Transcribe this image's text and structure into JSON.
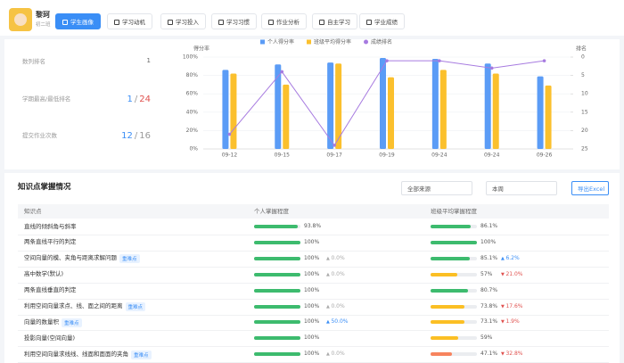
{
  "header": {
    "name": "黎珂",
    "class": "初二班",
    "tabs": [
      "学生画像",
      "学习动机",
      "学习投入",
      "学习习惯",
      "作业分析",
      "自主学习",
      "学业成绩"
    ]
  },
  "summary": [
    {
      "label": "数列排名",
      "parts": [
        "1"
      ]
    },
    {
      "label": "学期最高/最低排名",
      "parts": [
        "1",
        "/",
        "24"
      ]
    },
    {
      "label": "提交作业次数",
      "parts": [
        "12",
        "/",
        "16"
      ]
    }
  ],
  "chart_data": {
    "type": "bar-line",
    "ylabel": "得分率",
    "y2label": "排名",
    "categories": [
      "09-12",
      "09-15",
      "09-17",
      "09-19",
      "09-24",
      "09-24",
      "09-26"
    ],
    "series": [
      {
        "name": "个人得分率",
        "color": "#5b9cf6",
        "type": "bar",
        "values": [
          86,
          92,
          94,
          99,
          98,
          93,
          79
        ]
      },
      {
        "name": "班级平均得分率",
        "color": "#fbc02d",
        "type": "bar",
        "values": [
          82,
          70,
          93,
          78,
          86,
          82,
          69
        ]
      },
      {
        "name": "成绩排名",
        "color": "#a77be0",
        "type": "line",
        "axis": "y2",
        "values": [
          21,
          4,
          24,
          1,
          1,
          3,
          1
        ]
      }
    ],
    "ylim": [
      0,
      100
    ],
    "yticks": [
      {
        "value": 0,
        "label": "0%"
      },
      {
        "value": 20,
        "label": "20%"
      },
      {
        "value": 40,
        "label": "40%"
      },
      {
        "value": 60,
        "label": "60%"
      },
      {
        "value": 80,
        "label": "80%"
      },
      {
        "value": 100,
        "label": "100%"
      }
    ],
    "y2lim": [
      0,
      25
    ],
    "y2_inverted": true,
    "y2ticks": [
      0,
      5,
      10,
      15,
      20,
      25
    ],
    "grid": true,
    "legend": "top"
  },
  "knowledge": {
    "title": "知识点掌握情况",
    "filters": [
      "全部来源",
      "本周"
    ],
    "export": "导出Excel",
    "columns": [
      "知识点",
      "个人掌握程度",
      "班级平均掌握程度"
    ],
    "rows": [
      {
        "name": "直线的倾斜角与斜率",
        "personal": {
          "value": 93.8,
          "label": "93.8%",
          "color": "#3dbb6e"
        },
        "class": {
          "value": 86.1,
          "label": "86.1%",
          "color": "#3dbb6e"
        }
      },
      {
        "name": "两条直线平行的判定",
        "personal": {
          "value": 100,
          "label": "100%",
          "color": "#3dbb6e"
        },
        "class": {
          "value": 100,
          "label": "100%",
          "color": "#3dbb6e"
        }
      },
      {
        "name": "空间向量的模、夹角与距离求解问题",
        "tag": "重难点",
        "personal": {
          "value": 100,
          "label": "100%",
          "color": "#3dbb6e",
          "delta": {
            "value": 0.0,
            "label": "0.0%",
            "trend": "flat"
          }
        },
        "class": {
          "value": 85.1,
          "label": "85.1%",
          "color": "#3dbb6e",
          "delta": {
            "value": 6.2,
            "label": "6.2%",
            "trend": "up"
          }
        }
      },
      {
        "name": "高中数学(默认)",
        "personal": {
          "value": 100,
          "label": "100%",
          "color": "#3dbb6e",
          "delta": {
            "value": 0.0,
            "label": "0.0%",
            "trend": "flat"
          }
        },
        "class": {
          "value": 57,
          "label": "57%",
          "color": "#fbbf24",
          "delta": {
            "value": 21.0,
            "label": "21.0%",
            "trend": "down"
          }
        }
      },
      {
        "name": "两条直线垂直的判定",
        "personal": {
          "value": 100,
          "label": "100%",
          "color": "#3dbb6e"
        },
        "class": {
          "value": 80.7,
          "label": "80.7%",
          "color": "#3dbb6e"
        }
      },
      {
        "name": "利用空间向量求点、线、面之间的距离",
        "tag": "重难点",
        "personal": {
          "value": 100,
          "label": "100%",
          "color": "#3dbb6e",
          "delta": {
            "value": 0.0,
            "label": "0.0%",
            "trend": "flat"
          }
        },
        "class": {
          "value": 73.8,
          "label": "73.8%",
          "color": "#fbbf24",
          "delta": {
            "value": 17.6,
            "label": "17.6%",
            "trend": "down"
          }
        }
      },
      {
        "name": "向量的数量积",
        "tag": "重难点",
        "personal": {
          "value": 100,
          "label": "100%",
          "color": "#3dbb6e",
          "delta": {
            "value": 50.0,
            "label": "50.0%",
            "trend": "up"
          }
        },
        "class": {
          "value": 73.1,
          "label": "73.1%",
          "color": "#fbbf24",
          "delta": {
            "value": 1.9,
            "label": "1.9%",
            "trend": "down"
          }
        }
      },
      {
        "name": "投影向量(空间向量)",
        "personal": {
          "value": 100,
          "label": "100%",
          "color": "#3dbb6e"
        },
        "class": {
          "value": 59,
          "label": "59%",
          "color": "#fbbf24"
        }
      },
      {
        "name": "利用空间向量求线线、线面和面面的夹角",
        "tag": "重难点",
        "personal": {
          "value": 100,
          "label": "100%",
          "color": "#3dbb6e",
          "delta": {
            "value": 0.0,
            "label": "0.0%",
            "trend": "flat"
          }
        },
        "class": {
          "value": 47.1,
          "label": "47.1%",
          "color": "#f7845e",
          "delta": {
            "value": 32.8,
            "label": "32.8%",
            "trend": "down"
          }
        }
      }
    ]
  }
}
